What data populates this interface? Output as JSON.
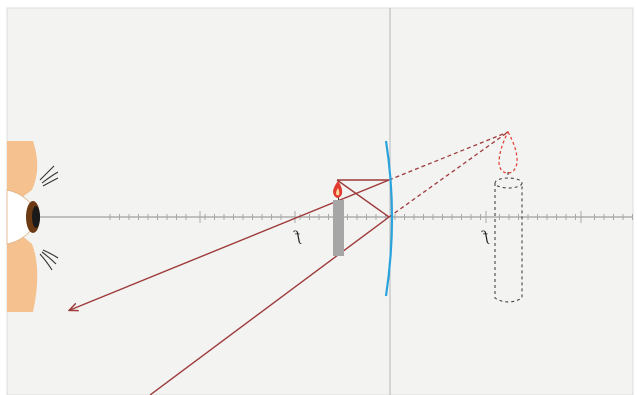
{
  "colors": {
    "panel": "#f3f3f2",
    "border": "#d8d8d8",
    "axis": "#9a9a9a",
    "ray": "#9e3b3b",
    "lens": "#2aa3dd",
    "candle_real": "#a6a6a6",
    "flame": "#e23a2e",
    "skin": "#f5c18e",
    "iris": "#6b3a12"
  },
  "labels": {
    "focal_left": "f",
    "focal_right": "f"
  },
  "icons": {
    "eye": "eye-icon",
    "candle_object": "candle-icon",
    "candle_image": "virtual-candle-icon",
    "lens": "diverging-lens-icon"
  }
}
